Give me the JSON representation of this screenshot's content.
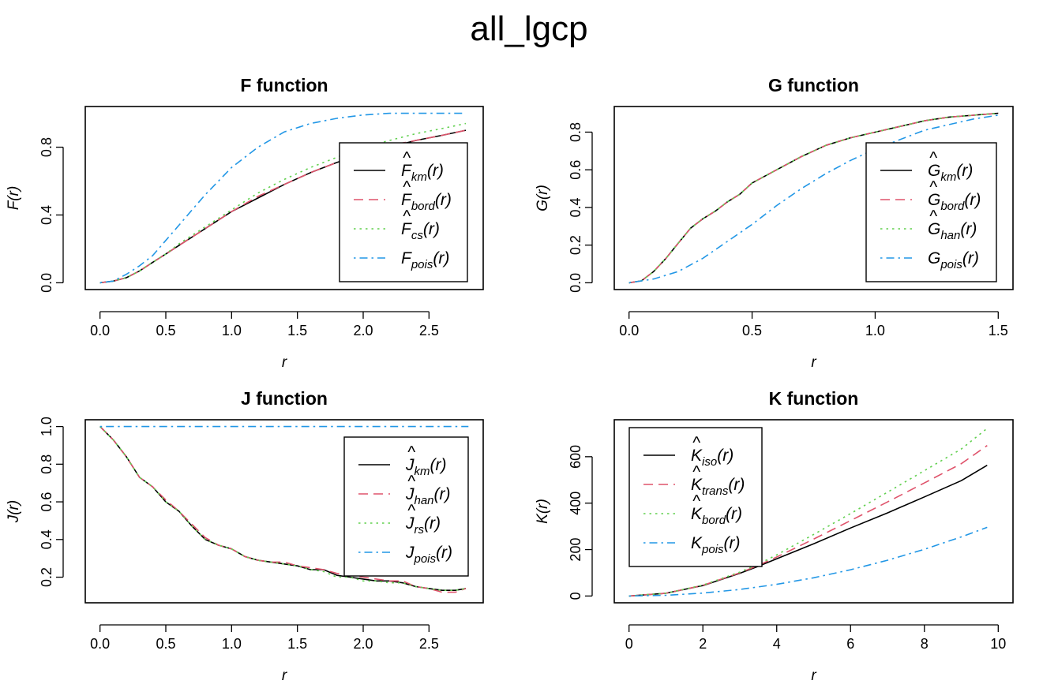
{
  "title": "all_lgcp",
  "colors": {
    "black": "#000000",
    "red": "#DF536B",
    "green": "#61D04F",
    "blue": "#2297E6"
  },
  "chart_data": [
    {
      "id": "F",
      "type": "line",
      "title": "F function",
      "xlabel": "r",
      "ylabel": "F(r)",
      "xlim": [
        0,
        2.8
      ],
      "ylim": [
        0,
        1.0
      ],
      "xticks": [
        "0.0",
        "0.5",
        "1.0",
        "1.5",
        "2.0",
        "2.5"
      ],
      "yticks": [
        "0.0",
        "0.4",
        "0.8"
      ],
      "legend_position": "bottom-right",
      "series": [
        {
          "name": "F̂_km(r)",
          "base": "F",
          "sub": "km",
          "hat": true,
          "style": "solid",
          "color": "#000000",
          "x": [
            0,
            0.1,
            0.2,
            0.3,
            0.4,
            0.5,
            0.6,
            0.8,
            1.0,
            1.2,
            1.4,
            1.6,
            1.8,
            2.0,
            2.2,
            2.4,
            2.6,
            2.78
          ],
          "y": [
            0,
            0.01,
            0.03,
            0.07,
            0.12,
            0.17,
            0.22,
            0.32,
            0.42,
            0.5,
            0.58,
            0.65,
            0.71,
            0.76,
            0.8,
            0.84,
            0.87,
            0.9
          ]
        },
        {
          "name": "F̂_bord(r)",
          "base": "F",
          "sub": "bord",
          "hat": true,
          "style": "dashed",
          "color": "#DF536B",
          "x": [
            0,
            0.1,
            0.2,
            0.3,
            0.4,
            0.5,
            0.6,
            0.8,
            1.0,
            1.2,
            1.4,
            1.6,
            1.8,
            2.0,
            2.2,
            2.4,
            2.6,
            2.78
          ],
          "y": [
            0,
            0.01,
            0.03,
            0.07,
            0.12,
            0.17,
            0.22,
            0.32,
            0.42,
            0.51,
            0.58,
            0.65,
            0.71,
            0.76,
            0.81,
            0.84,
            0.87,
            0.9
          ]
        },
        {
          "name": "F̂_cs(r)",
          "base": "F",
          "sub": "cs",
          "hat": true,
          "style": "dotted",
          "color": "#61D04F",
          "x": [
            0,
            0.1,
            0.2,
            0.3,
            0.4,
            0.5,
            0.6,
            0.8,
            1.0,
            1.2,
            1.4,
            1.6,
            1.8,
            2.0,
            2.2,
            2.4,
            2.6,
            2.78
          ],
          "y": [
            0,
            0.01,
            0.03,
            0.07,
            0.12,
            0.17,
            0.23,
            0.33,
            0.43,
            0.53,
            0.61,
            0.68,
            0.74,
            0.8,
            0.84,
            0.88,
            0.91,
            0.94
          ]
        },
        {
          "name": "F_pois(r)",
          "base": "F",
          "sub": "pois",
          "hat": false,
          "style": "dotdash",
          "color": "#2297E6",
          "x": [
            0,
            0.1,
            0.2,
            0.3,
            0.4,
            0.5,
            0.6,
            0.7,
            0.8,
            0.9,
            1.0,
            1.2,
            1.4,
            1.6,
            1.8,
            2.0,
            2.2,
            2.4,
            2.6,
            2.78
          ],
          "y": [
            0,
            0.01,
            0.05,
            0.1,
            0.16,
            0.25,
            0.34,
            0.43,
            0.52,
            0.6,
            0.68,
            0.8,
            0.89,
            0.94,
            0.97,
            0.99,
            1.0,
            1.0,
            1.0,
            1.0
          ]
        }
      ]
    },
    {
      "id": "G",
      "type": "line",
      "title": "G function",
      "xlabel": "r",
      "ylabel": "G(r)",
      "xlim": [
        0,
        1.5
      ],
      "ylim": [
        0,
        0.9
      ],
      "xticks": [
        "0.0",
        "0.5",
        "1.0",
        "1.5"
      ],
      "yticks": [
        "0.0",
        "0.2",
        "0.4",
        "0.6",
        "0.8"
      ],
      "legend_position": "bottom-right",
      "series": [
        {
          "name": "Ĝ_km(r)",
          "base": "G",
          "sub": "km",
          "hat": true,
          "style": "solid",
          "color": "#000000",
          "x": [
            0,
            0.05,
            0.1,
            0.15,
            0.2,
            0.25,
            0.3,
            0.35,
            0.4,
            0.45,
            0.5,
            0.6,
            0.7,
            0.8,
            0.9,
            1.0,
            1.1,
            1.2,
            1.3,
            1.4,
            1.5
          ],
          "y": [
            0,
            0.01,
            0.06,
            0.13,
            0.21,
            0.29,
            0.34,
            0.38,
            0.43,
            0.47,
            0.53,
            0.6,
            0.67,
            0.73,
            0.77,
            0.8,
            0.83,
            0.86,
            0.88,
            0.89,
            0.9
          ]
        },
        {
          "name": "Ĝ_bord(r)",
          "base": "G",
          "sub": "bord",
          "hat": true,
          "style": "dashed",
          "color": "#DF536B",
          "x": [
            0,
            0.05,
            0.1,
            0.15,
            0.2,
            0.25,
            0.3,
            0.35,
            0.4,
            0.45,
            0.5,
            0.6,
            0.7,
            0.8,
            0.9,
            1.0,
            1.1,
            1.2,
            1.3,
            1.4,
            1.5
          ],
          "y": [
            0,
            0.01,
            0.06,
            0.13,
            0.21,
            0.29,
            0.34,
            0.38,
            0.43,
            0.47,
            0.53,
            0.6,
            0.67,
            0.73,
            0.77,
            0.8,
            0.83,
            0.86,
            0.88,
            0.89,
            0.9
          ]
        },
        {
          "name": "Ĝ_han(r)",
          "base": "G",
          "sub": "han",
          "hat": true,
          "style": "dotted",
          "color": "#61D04F",
          "x": [
            0,
            0.05,
            0.1,
            0.15,
            0.2,
            0.25,
            0.3,
            0.35,
            0.4,
            0.45,
            0.5,
            0.6,
            0.7,
            0.8,
            0.9,
            1.0,
            1.1,
            1.2,
            1.3,
            1.4,
            1.5
          ],
          "y": [
            0,
            0.01,
            0.06,
            0.13,
            0.21,
            0.29,
            0.34,
            0.38,
            0.43,
            0.47,
            0.53,
            0.6,
            0.67,
            0.73,
            0.77,
            0.8,
            0.83,
            0.86,
            0.88,
            0.89,
            0.9
          ]
        },
        {
          "name": "G_pois(r)",
          "base": "G",
          "sub": "pois",
          "hat": false,
          "style": "dotdash",
          "color": "#2297E6",
          "x": [
            0,
            0.1,
            0.2,
            0.3,
            0.4,
            0.5,
            0.6,
            0.7,
            0.8,
            0.9,
            1.0,
            1.1,
            1.2,
            1.3,
            1.4,
            1.5
          ],
          "y": [
            0,
            0.02,
            0.06,
            0.13,
            0.22,
            0.31,
            0.41,
            0.5,
            0.58,
            0.65,
            0.71,
            0.76,
            0.81,
            0.84,
            0.87,
            0.89
          ]
        }
      ]
    },
    {
      "id": "J",
      "type": "line",
      "title": "J function",
      "xlabel": "r",
      "ylabel": "J(r)",
      "xlim": [
        0,
        2.8
      ],
      "ylim": [
        0.1,
        1.0
      ],
      "xticks": [
        "0.0",
        "0.5",
        "1.0",
        "1.5",
        "2.0",
        "2.5"
      ],
      "yticks": [
        "0.2",
        "0.4",
        "0.6",
        "0.8",
        "1.0"
      ],
      "legend_position": "top-right",
      "series": [
        {
          "name": "Ĵ_km(r)",
          "base": "J",
          "sub": "km",
          "hat": true,
          "style": "solid",
          "color": "#000000",
          "x": [
            0,
            0.1,
            0.2,
            0.3,
            0.4,
            0.5,
            0.6,
            0.7,
            0.8,
            0.9,
            1.0,
            1.1,
            1.2,
            1.3,
            1.4,
            1.5,
            1.6,
            1.7,
            1.8,
            1.9,
            2.0,
            2.1,
            2.2,
            2.3,
            2.4,
            2.5,
            2.6,
            2.7,
            2.78
          ],
          "y": [
            1.0,
            0.93,
            0.84,
            0.73,
            0.68,
            0.6,
            0.55,
            0.47,
            0.4,
            0.37,
            0.35,
            0.31,
            0.29,
            0.28,
            0.27,
            0.26,
            0.24,
            0.24,
            0.21,
            0.2,
            0.19,
            0.18,
            0.18,
            0.17,
            0.15,
            0.14,
            0.13,
            0.13,
            0.14
          ]
        },
        {
          "name": "Ĵ_han(r)",
          "base": "J",
          "sub": "han",
          "hat": true,
          "style": "dashed",
          "color": "#DF536B",
          "x": [
            0,
            0.1,
            0.2,
            0.3,
            0.4,
            0.5,
            0.6,
            0.7,
            0.8,
            0.9,
            1.0,
            1.1,
            1.2,
            1.3,
            1.4,
            1.5,
            1.6,
            1.7,
            1.8,
            1.9,
            2.0,
            2.1,
            2.2,
            2.3,
            2.4,
            2.5,
            2.6,
            2.7,
            2.78
          ],
          "y": [
            1.0,
            0.93,
            0.84,
            0.73,
            0.68,
            0.61,
            0.55,
            0.48,
            0.41,
            0.37,
            0.35,
            0.31,
            0.29,
            0.28,
            0.28,
            0.26,
            0.25,
            0.24,
            0.22,
            0.21,
            0.2,
            0.19,
            0.18,
            0.18,
            0.15,
            0.14,
            0.12,
            0.12,
            0.14
          ]
        },
        {
          "name": "Ĵ_rs(r)",
          "base": "J",
          "sub": "rs",
          "hat": true,
          "style": "dotted",
          "color": "#61D04F",
          "x": [
            0,
            0.1,
            0.2,
            0.3,
            0.4,
            0.5,
            0.6,
            0.7,
            0.8,
            0.9,
            1.0,
            1.1,
            1.2,
            1.3,
            1.4,
            1.5,
            1.6,
            1.7,
            1.8,
            1.9,
            2.0,
            2.1,
            2.2,
            2.3,
            2.4,
            2.5,
            2.6,
            2.7,
            2.78
          ],
          "y": [
            1.0,
            0.93,
            0.84,
            0.73,
            0.68,
            0.6,
            0.55,
            0.47,
            0.4,
            0.37,
            0.35,
            0.31,
            0.29,
            0.28,
            0.27,
            0.26,
            0.24,
            0.23,
            0.2,
            0.2,
            0.18,
            0.18,
            0.17,
            0.17,
            0.15,
            0.14,
            0.13,
            0.13,
            0.14
          ]
        },
        {
          "name": "J_pois(r)",
          "base": "J",
          "sub": "pois",
          "hat": false,
          "style": "dotdash",
          "color": "#2297E6",
          "x": [
            0,
            2.8
          ],
          "y": [
            1.0,
            1.0
          ]
        }
      ]
    },
    {
      "id": "K",
      "type": "line",
      "title": "K function",
      "xlabel": "r",
      "ylabel": "K(r)",
      "xlim": [
        0,
        10
      ],
      "ylim": [
        0,
        730
      ],
      "xticks": [
        "0",
        "2",
        "4",
        "6",
        "8",
        "10"
      ],
      "yticks": [
        "0",
        "200",
        "400",
        "600"
      ],
      "legend_position": "top-left",
      "series": [
        {
          "name": "K̂_iso(r)",
          "base": "K",
          "sub": "iso",
          "hat": true,
          "style": "solid",
          "color": "#000000",
          "x": [
            0,
            1,
            2,
            3,
            3.5,
            4,
            5,
            6,
            7,
            8,
            9,
            9.7
          ],
          "y": [
            0,
            12,
            45,
            98,
            128,
            160,
            225,
            293,
            358,
            427,
            497,
            563
          ]
        },
        {
          "name": "K̂_trans(r)",
          "base": "K",
          "sub": "trans",
          "hat": true,
          "style": "dashed",
          "color": "#DF536B",
          "x": [
            0,
            1,
            2,
            3,
            3.5,
            4,
            5,
            6,
            7,
            8,
            9,
            9.7
          ],
          "y": [
            0,
            12,
            46,
            100,
            132,
            168,
            245,
            325,
            405,
            487,
            570,
            648
          ]
        },
        {
          "name": "K̂_bord(r)",
          "base": "K",
          "sub": "bord",
          "hat": true,
          "style": "dotted",
          "color": "#61D04F",
          "x": [
            0,
            1,
            2,
            3,
            3.5,
            4,
            5,
            6,
            7,
            8,
            9,
            9.7
          ],
          "y": [
            0,
            12,
            47,
            103,
            137,
            177,
            265,
            355,
            447,
            540,
            633,
            722
          ]
        },
        {
          "name": "K_pois(r)",
          "base": "K",
          "sub": "pois",
          "hat": false,
          "style": "dotdash",
          "color": "#2297E6",
          "x": [
            0,
            1,
            2,
            3,
            4,
            5,
            6,
            7,
            8,
            9,
            9.7
          ],
          "y": [
            0,
            3.1,
            12.6,
            28.3,
            50.3,
            78.5,
            113.1,
            153.9,
            201.1,
            254.5,
            295.6
          ]
        }
      ]
    }
  ]
}
